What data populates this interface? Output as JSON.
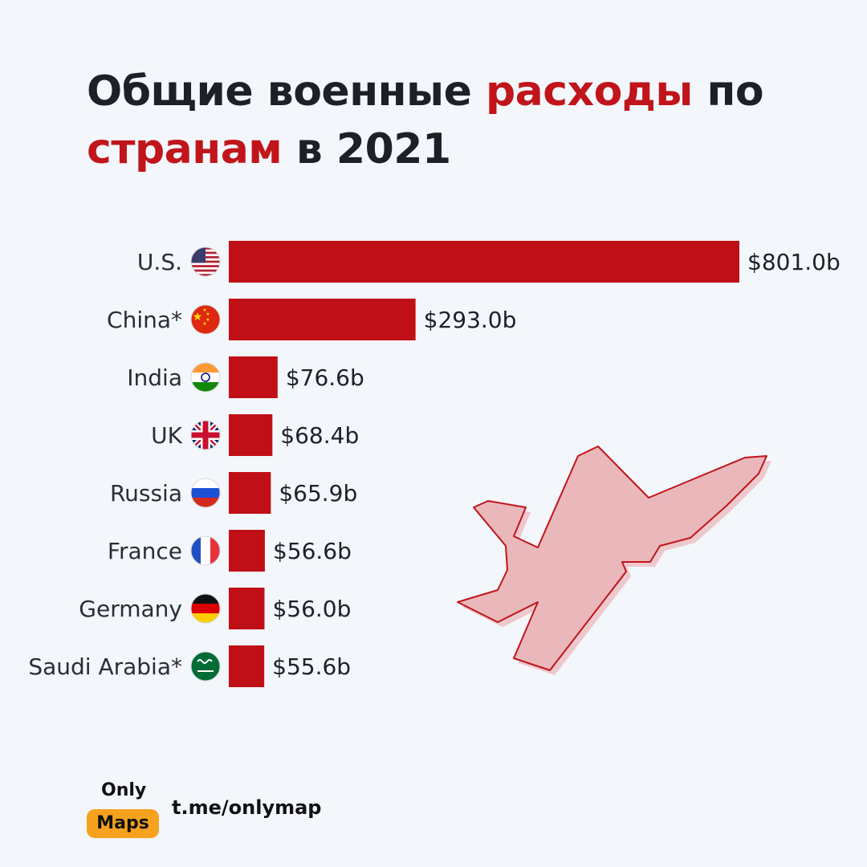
{
  "title": {
    "part1": "Общие военные ",
    "part2": "расходы",
    "part3": " по",
    "part4": "странам",
    "part5": " в 2021"
  },
  "chart_data": {
    "type": "bar",
    "orientation": "horizontal",
    "categories": [
      "U.S.",
      "China*",
      "India",
      "UK",
      "Russia",
      "France",
      "Germany",
      "Saudi Arabia*"
    ],
    "values": [
      801.0,
      293.0,
      76.6,
      68.4,
      65.9,
      56.6,
      56.0,
      55.6
    ],
    "value_labels": [
      "$801.0b",
      "$293.0b",
      "$76.6b",
      "$68.4b",
      "$65.9b",
      "$56.6b",
      "$56.0b",
      "$55.6b"
    ],
    "flags": [
      "us-flag-icon",
      "china-flag-icon",
      "india-flag-icon",
      "uk-flag-icon",
      "russia-flag-icon",
      "france-flag-icon",
      "germany-flag-icon",
      "saudi-arabia-flag-icon"
    ],
    "bar_color": "#c00f16",
    "grid": false,
    "legend": "none"
  },
  "footer": {
    "logo_top": "Only",
    "logo_bottom": "Maps",
    "link": "t.me/onlymap"
  },
  "colors": {
    "accent": "#c0151b",
    "text": "#1d2026",
    "background": "#f3f6fa",
    "logo": "#f6a21e"
  }
}
